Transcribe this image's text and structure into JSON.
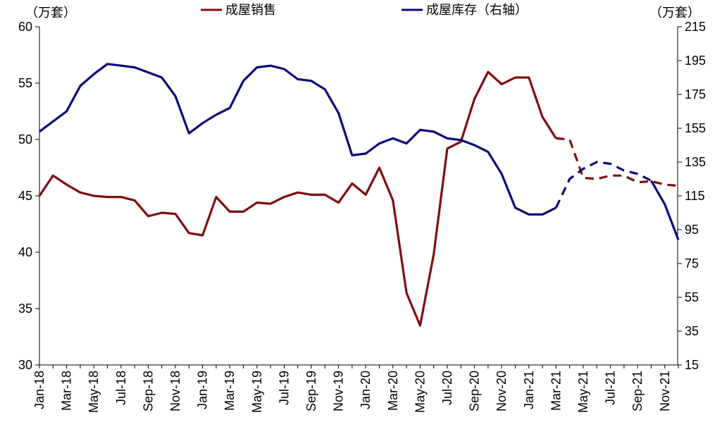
{
  "chart_data": {
    "type": "line",
    "left_unit": "（万套）",
    "right_unit": "（万套）",
    "y_left": {
      "min": 30,
      "max": 60,
      "ticks": [
        "30",
        "35",
        "40",
        "45",
        "50",
        "55",
        "60"
      ]
    },
    "y_right": {
      "min": 15,
      "max": 215,
      "ticks": [
        "15",
        "35",
        "55",
        "75",
        "95",
        "115",
        "135",
        "155",
        "175",
        "195",
        "215"
      ]
    },
    "x": [
      "Jan-18",
      "Feb-18",
      "Mar-18",
      "Apr-18",
      "May-18",
      "Jun-18",
      "Jul-18",
      "Aug-18",
      "Sep-18",
      "Oct-18",
      "Nov-18",
      "Dec-18",
      "Jan-19",
      "Feb-19",
      "Mar-19",
      "Apr-19",
      "May-19",
      "Jun-19",
      "Jul-19",
      "Aug-19",
      "Sep-19",
      "Oct-19",
      "Nov-19",
      "Dec-19",
      "Jan-20",
      "Feb-20",
      "Mar-20",
      "Apr-20",
      "May-20",
      "Jun-20",
      "Jul-20",
      "Aug-20",
      "Sep-20",
      "Oct-20",
      "Nov-20",
      "Dec-20",
      "Jan-21",
      "Feb-21",
      "Mar-21",
      "Apr-21",
      "May-21",
      "Jun-21",
      "Jul-21",
      "Aug-21",
      "Sep-21",
      "Oct-21",
      "Nov-21",
      "Dec-21"
    ],
    "x_tick_labels": [
      "Jan-18",
      "Mar-18",
      "May-18",
      "Jul-18",
      "Sep-18",
      "Nov-18",
      "Jan-19",
      "Mar-19",
      "May-19",
      "Jul-19",
      "Sep-19",
      "Nov-19",
      "Jan-20",
      "Mar-20",
      "May-20",
      "Jul-20",
      "Sep-20",
      "Nov-20",
      "Jan-21",
      "Mar-21",
      "May-21",
      "Jul-21",
      "Sep-21",
      "Nov-21"
    ],
    "series": [
      {
        "name": "成屋销售",
        "axis": "left",
        "color": "#7f0d0d",
        "forecast_from_index": 38,
        "values": [
          45.0,
          46.8,
          46.0,
          45.3,
          45.0,
          44.9,
          44.9,
          44.6,
          43.2,
          43.5,
          43.4,
          41.7,
          41.5,
          44.9,
          43.6,
          43.6,
          44.4,
          44.3,
          44.9,
          45.3,
          45.1,
          45.1,
          44.4,
          46.1,
          45.1,
          47.5,
          44.6,
          36.4,
          33.5,
          39.8,
          49.2,
          49.8,
          53.6,
          56.0,
          54.9,
          55.5,
          55.5,
          52.0,
          50.1,
          50.0,
          46.6,
          46.5,
          46.8,
          46.8,
          46.2,
          46.3,
          46.0,
          45.9
        ]
      },
      {
        "name": "成屋库存（右轴）",
        "axis": "right",
        "color": "#0a0a7a",
        "forecast_start_index": 38,
        "forecast_end_index": 45,
        "values": [
          153,
          159,
          165,
          180,
          187,
          193,
          192,
          191,
          188,
          185,
          174,
          152,
          158,
          163,
          167,
          183,
          191,
          192,
          190,
          184,
          183,
          178,
          164,
          139,
          140,
          146,
          149,
          146,
          154,
          153,
          149,
          148,
          145,
          141,
          128,
          108,
          104,
          104,
          108,
          125,
          131,
          135,
          134,
          130,
          128,
          124,
          110,
          89
        ]
      }
    ]
  }
}
